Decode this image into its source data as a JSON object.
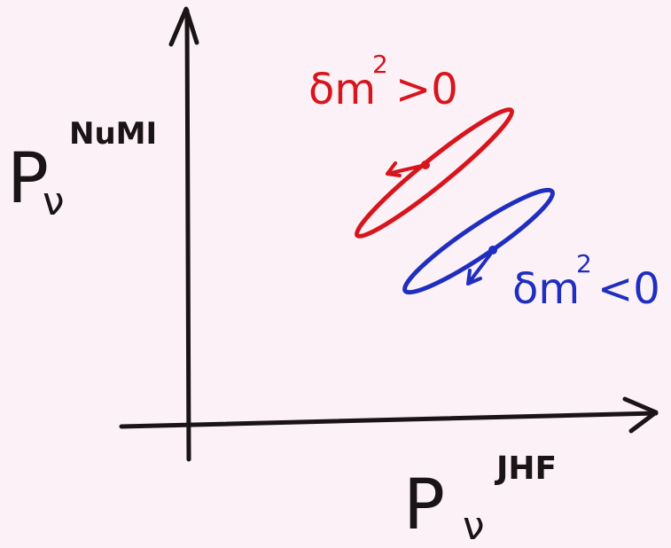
{
  "y_axis_label": {
    "symbol": "P",
    "subscript": "ν",
    "superscript": "NuMI"
  },
  "x_axis_label": {
    "symbol": "P",
    "subscript": "ν",
    "superscript": "JHF"
  },
  "regions": [
    {
      "prefix": "δm",
      "exponent": "2",
      "relation": ">0"
    },
    {
      "prefix": "δm",
      "exponent": "2",
      "relation": "<0"
    }
  ]
}
